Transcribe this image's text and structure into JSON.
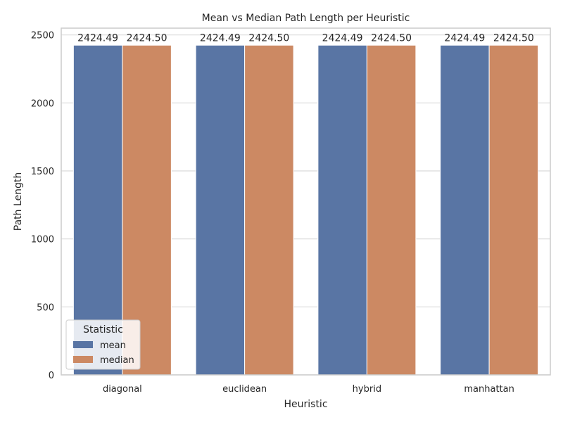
{
  "chart_data": {
    "type": "bar",
    "title": "Mean vs Median Path Length per Heuristic",
    "xlabel": "Heuristic",
    "ylabel": "Path Length",
    "categories": [
      "diagonal",
      "euclidean",
      "hybrid",
      "manhattan"
    ],
    "series": [
      {
        "name": "mean",
        "values": [
          2424.49,
          2424.49,
          2424.49,
          2424.49
        ],
        "color": "#5975a4",
        "labels": [
          "2424.49",
          "2424.49",
          "2424.49",
          "2424.49"
        ]
      },
      {
        "name": "median",
        "values": [
          2424.5,
          2424.5,
          2424.5,
          2424.5
        ],
        "color": "#cc8963",
        "labels": [
          "2424.50",
          "2424.50",
          "2424.50",
          "2424.50"
        ]
      }
    ],
    "ylim": [
      0,
      2550
    ],
    "yticks": [
      0,
      500,
      1000,
      1500,
      2000,
      2500
    ],
    "grid": true,
    "legend": {
      "title": "Statistic",
      "position": "lower-left"
    }
  }
}
